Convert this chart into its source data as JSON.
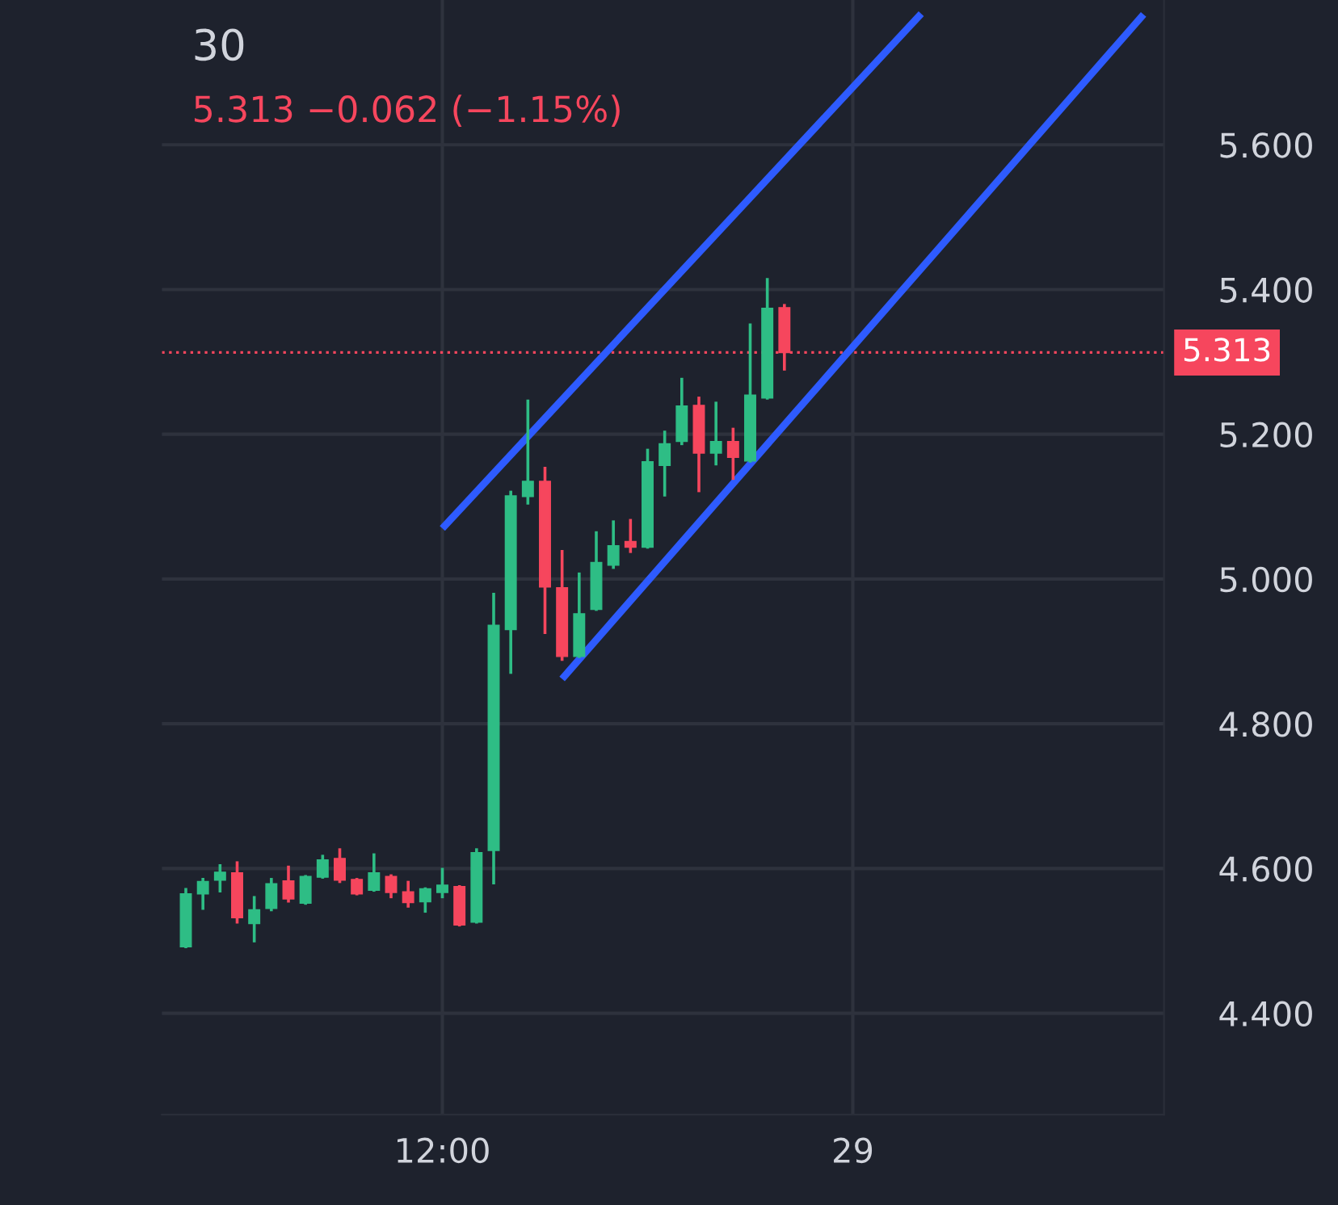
{
  "chart_data": {
    "type": "candlestick",
    "title": "30",
    "subtitle": "5.313 −0.062 (−1.15%)",
    "categories": [
      null,
      null,
      null,
      null,
      null,
      null,
      null,
      null,
      null,
      null,
      null,
      null,
      null,
      null,
      null,
      "12:00",
      null,
      null,
      null,
      null,
      null,
      null,
      null,
      null,
      null,
      null,
      null,
      null,
      null,
      null,
      null,
      null,
      null,
      null,
      null,
      null,
      null,
      null,
      null,
      "29",
      null,
      null,
      null,
      null,
      null,
      null,
      null,
      null,
      null,
      null,
      null,
      null,
      null,
      null,
      null,
      null,
      null,
      null
    ],
    "ohlc": [
      [
        4.492,
        4.573,
        4.49,
        4.565
      ],
      [
        4.565,
        4.587,
        4.543,
        4.582
      ],
      [
        4.584,
        4.606,
        4.567,
        4.595
      ],
      [
        4.594,
        4.61,
        4.524,
        4.532
      ],
      [
        4.524,
        4.562,
        4.498,
        4.543
      ],
      [
        4.545,
        4.587,
        4.541,
        4.579
      ],
      [
        4.583,
        4.604,
        4.553,
        4.558
      ],
      [
        4.552,
        4.591,
        4.55,
        4.589
      ],
      [
        4.588,
        4.619,
        4.586,
        4.612
      ],
      [
        4.614,
        4.628,
        4.58,
        4.584
      ],
      [
        4.585,
        4.587,
        4.563,
        4.565
      ],
      [
        4.57,
        4.621,
        4.568,
        4.594
      ],
      [
        4.589,
        4.592,
        4.559,
        4.567
      ],
      [
        4.568,
        4.583,
        4.546,
        4.553
      ],
      [
        4.554,
        4.574,
        4.539,
        4.572
      ],
      [
        4.567,
        4.601,
        4.559,
        4.577
      ],
      [
        4.575,
        4.577,
        4.52,
        4.522
      ],
      [
        4.526,
        4.628,
        4.524,
        4.622
      ],
      [
        4.625,
        4.981,
        4.578,
        4.936
      ],
      [
        4.93,
        5.122,
        4.869,
        5.115
      ],
      [
        5.114,
        5.248,
        5.103,
        5.135
      ],
      [
        5.135,
        5.155,
        4.924,
        4.989
      ],
      [
        4.988,
        5.04,
        4.887,
        4.893
      ],
      [
        4.893,
        5.009,
        4.891,
        4.952
      ],
      [
        4.958,
        5.066,
        4.956,
        5.023
      ],
      [
        5.019,
        5.081,
        5.014,
        5.046
      ],
      [
        5.052,
        5.083,
        5.036,
        5.044
      ],
      [
        5.044,
        5.18,
        5.042,
        5.162
      ],
      [
        5.157,
        5.205,
        5.114,
        5.187
      ],
      [
        5.19,
        5.278,
        5.185,
        5.239
      ],
      [
        5.24,
        5.252,
        5.12,
        5.174
      ],
      [
        5.174,
        5.245,
        5.157,
        5.19
      ],
      [
        5.19,
        5.209,
        5.137,
        5.168
      ],
      [
        5.163,
        5.353,
        5.161,
        5.254
      ],
      [
        5.25,
        5.416,
        5.248,
        5.374
      ],
      [
        5.375,
        5.38,
        5.288,
        5.313
      ],
      null,
      null,
      null,
      null,
      null,
      null,
      null,
      null,
      null,
      null,
      null,
      null,
      null,
      null,
      null,
      null,
      null,
      null,
      null,
      null,
      null,
      null
    ],
    "colors": [
      "#2ebd85",
      "#2ebd85",
      "#2ebd85",
      "#f6465d",
      "#2ebd85",
      "#2ebd85",
      "#f6465d",
      "#2ebd85",
      "#2ebd85",
      "#f6465d",
      "#f6465d",
      "#2ebd85",
      "#f6465d",
      "#f6465d",
      "#2ebd85",
      "#2ebd85",
      "#f6465d",
      "#2ebd85",
      "#2ebd85",
      "#2ebd85",
      "#2ebd85",
      "#f6465d",
      "#f6465d",
      "#2ebd85",
      "#2ebd85",
      "#2ebd85",
      "#f6465d",
      "#2ebd85",
      "#2ebd85",
      "#2ebd85",
      "#f6465d",
      "#2ebd85",
      "#f6465d",
      "#2ebd85",
      "#2ebd85",
      "#f6465d",
      null,
      null,
      null,
      null,
      null,
      null,
      null,
      null,
      null,
      null,
      null,
      null,
      null,
      null,
      null,
      null,
      null,
      null,
      null,
      null,
      null,
      null
    ],
    "series": [
      {
        "type": "line",
        "color": "#2e5bff",
        "values": [
          null,
          null,
          null,
          null,
          null,
          null,
          null,
          null,
          null,
          null,
          null,
          null,
          null,
          null,
          null,
          5.07,
          null,
          null,
          null,
          null,
          null,
          null,
          null,
          null,
          null,
          null,
          null,
          null,
          null,
          null,
          null,
          null,
          null,
          null,
          null,
          null,
          null,
          null,
          null,
          null,
          null,
          null,
          null,
          5.781,
          null,
          null,
          null,
          null,
          null,
          null,
          null,
          null,
          null,
          null,
          null,
          null,
          null,
          null
        ]
      },
      {
        "type": "line",
        "color": "#2e5bff",
        "values": [
          null,
          null,
          null,
          null,
          null,
          null,
          null,
          null,
          null,
          null,
          null,
          null,
          null,
          null,
          null,
          null,
          null,
          null,
          null,
          null,
          null,
          null,
          4.862,
          null,
          null,
          null,
          null,
          null,
          null,
          null,
          null,
          null,
          null,
          null,
          null,
          null,
          null,
          null,
          null,
          null,
          null,
          null,
          null,
          null,
          null,
          null,
          null,
          null,
          null,
          null,
          null,
          null,
          null,
          null,
          null,
          null,
          5.78,
          null
        ]
      }
    ],
    "ref_lines": [
      {
        "axis": "y",
        "value": 5.313,
        "label": "5.313",
        "color": "#f6465d",
        "line_style": "dotted"
      }
    ],
    "ylim": [
      4.26,
      5.8
    ],
    "yticks": [
      {
        "value": 4.4,
        "label": "4.400"
      },
      {
        "value": 4.6,
        "label": "4.600"
      },
      {
        "value": 4.8,
        "label": "4.800"
      },
      {
        "value": 5.0,
        "label": "5.000"
      },
      {
        "value": 5.2,
        "label": "5.200"
      },
      {
        "value": 5.4,
        "label": "5.400"
      },
      {
        "value": 5.6,
        "label": "5.600"
      }
    ],
    "grid": true
  }
}
